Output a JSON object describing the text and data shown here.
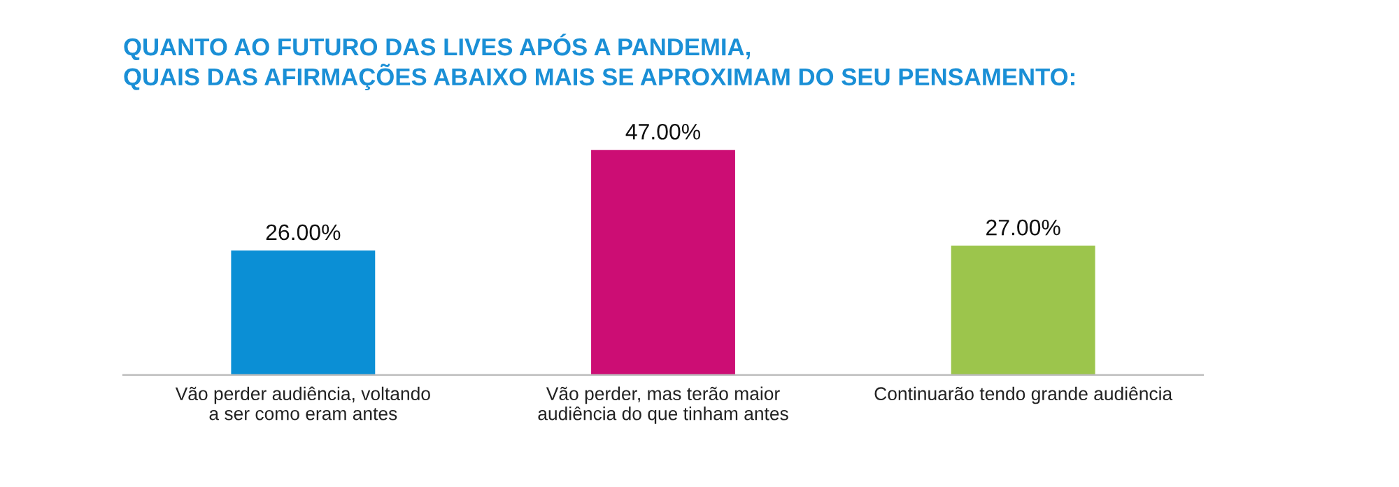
{
  "chart_data": {
    "type": "bar",
    "title": "QUANTO AO FUTURO DAS LIVES APÓS A PANDEMIA,\nQUAIS DAS AFIRMAÇÕES ABAIXO MAIS SE APROXIMAM DO SEU PENSAMENTO:",
    "categories": [
      "Vão perder audiência, voltando\na ser como eram antes",
      "Vão perder, mas terão maior\naudiência do que tinham antes",
      "Continuarão tendo grande audiência"
    ],
    "values": [
      26,
      47,
      27
    ],
    "colors": [
      "#0b8fd5",
      "#cc0d74",
      "#9cc54c"
    ],
    "value_labels": [
      "26.00%",
      "47.00%",
      "27.00%"
    ],
    "grid": false,
    "legend": false
  }
}
